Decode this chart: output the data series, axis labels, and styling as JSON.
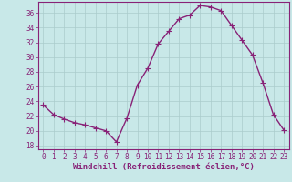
{
  "x": [
    0,
    1,
    2,
    3,
    4,
    5,
    6,
    7,
    8,
    9,
    10,
    11,
    12,
    13,
    14,
    15,
    16,
    17,
    18,
    19,
    20,
    21,
    22,
    23
  ],
  "y": [
    23.5,
    22.2,
    21.6,
    21.1,
    20.8,
    20.4,
    20.0,
    18.5,
    21.7,
    26.2,
    28.5,
    31.8,
    33.5,
    35.2,
    35.7,
    37.0,
    36.8,
    36.3,
    34.3,
    32.3,
    30.3,
    26.5,
    22.2,
    20.1
  ],
  "line_color": "#882277",
  "marker": "+",
  "markersize": 4,
  "linewidth": 1.0,
  "bg_color": "#c8e8e8",
  "grid_color": "#aacccc",
  "xlabel": "Windchill (Refroidissement éolien,°C)",
  "xlabel_color": "#882277",
  "xlim": [
    -0.5,
    23.5
  ],
  "ylim": [
    17.5,
    37.5
  ],
  "yticks": [
    18,
    20,
    22,
    24,
    26,
    28,
    30,
    32,
    34,
    36
  ],
  "xticks": [
    0,
    1,
    2,
    3,
    4,
    5,
    6,
    7,
    8,
    9,
    10,
    11,
    12,
    13,
    14,
    15,
    16,
    17,
    18,
    19,
    20,
    21,
    22,
    23
  ],
  "tick_color": "#882277",
  "tick_fontsize": 5.5,
  "xlabel_fontsize": 6.5,
  "spine_color": "#882277"
}
